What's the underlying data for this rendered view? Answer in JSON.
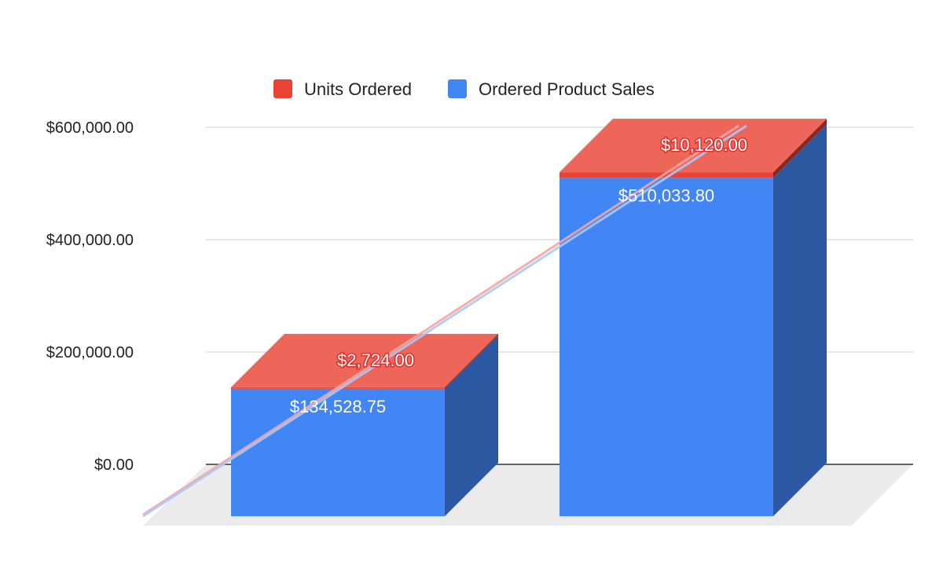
{
  "chart_data": {
    "type": "bar",
    "stacked": true,
    "three_d": true,
    "title": "",
    "xlabel": "",
    "ylabel": "",
    "categories": [
      "",
      ""
    ],
    "series": [
      {
        "name": "Units Ordered",
        "color": "#ea4335",
        "values": [
          2724.0,
          10120.0
        ],
        "labels": [
          "$2,724.00",
          "$10,120.00"
        ]
      },
      {
        "name": "Ordered Product Sales",
        "color": "#4285f4",
        "values": [
          134528.75,
          510033.8
        ],
        "labels": [
          "$134,528.75",
          "$510,033.80"
        ]
      }
    ],
    "trendlines": [
      {
        "series": "Units Ordered",
        "color": "#f4a6a0"
      },
      {
        "series": "Ordered Product Sales",
        "color": "#aac8f7"
      }
    ],
    "y_ticks": [
      "$0.00",
      "$200,000.00",
      "$400,000.00",
      "$600,000.00"
    ],
    "y_tick_values": [
      0,
      200000,
      400000,
      600000
    ],
    "ylim": [
      0,
      600000
    ],
    "grid": true,
    "legend": "top"
  }
}
